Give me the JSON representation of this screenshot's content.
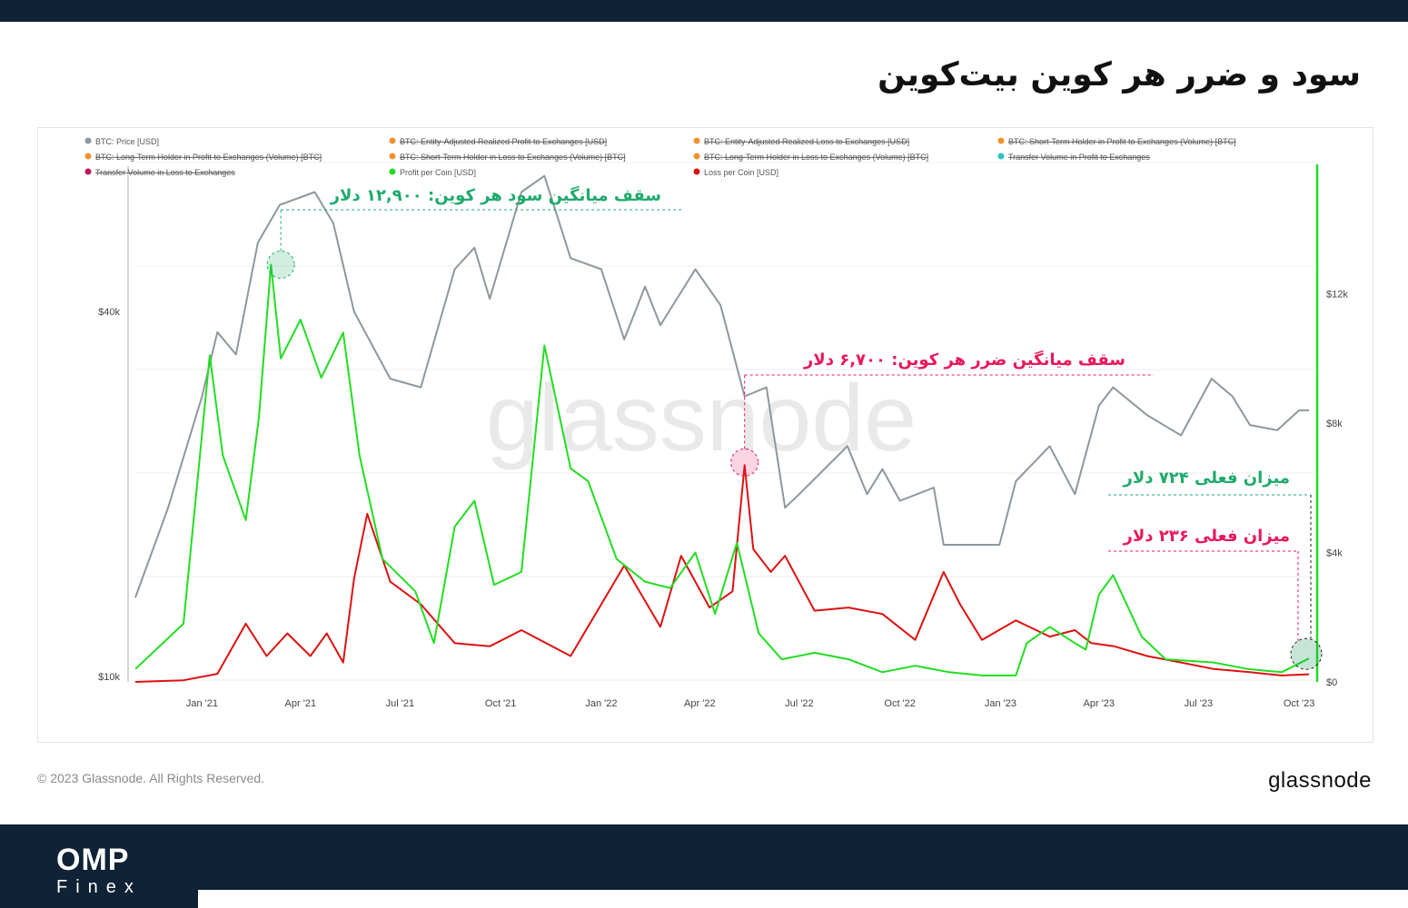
{
  "header": {
    "title": "سود و ضرر هر کوین بیت‌کوین"
  },
  "footer": {
    "copyright": "© 2023 Glassnode. All Rights Reserved.",
    "logo_text": "glassnode",
    "brand_main": "OMP",
    "brand_sub": "Finex"
  },
  "colors": {
    "price": "#8e979e",
    "profit": "#22dd22",
    "loss": "#dd1111",
    "annot_green": "#1faa6b",
    "annot_red": "#e8185a",
    "dark_bar": "#0f2236"
  },
  "chart_data": {
    "type": "line",
    "watermark": "glassnode",
    "legend": [
      {
        "label": "BTC: Price [USD]",
        "color": "#8e979e",
        "hidden": false
      },
      {
        "label": "BTC: Entity-Adjusted Realized Profit to Exchanges [USD]",
        "color": "#f5922b",
        "hidden": true
      },
      {
        "label": "BTC: Entity-Adjusted Realized Loss to Exchanges [USD]",
        "color": "#f5922b",
        "hidden": true
      },
      {
        "label": "BTC: Short-Term Holder in Profit to Exchanges (Volume) [BTC]",
        "color": "#f5922b",
        "hidden": true
      },
      {
        "label": "BTC: Long-Term Holder in Profit to Exchanges (Volume) [BTC]",
        "color": "#f5922b",
        "hidden": true
      },
      {
        "label": "BTC: Short-Term Holder in Loss to Exchanges (Volume) [BTC]",
        "color": "#f5922b",
        "hidden": true
      },
      {
        "label": "BTC: Long-Term Holder in Loss to Exchanges (Volume) [BTC]",
        "color": "#f5922b",
        "hidden": true
      },
      {
        "label": "Transfer Volume in Profit to Exchanges",
        "color": "#2ec4c4",
        "hidden": true
      },
      {
        "label": "Transfer Volume in Loss to Exchanges",
        "color": "#c0175a",
        "hidden": true
      },
      {
        "label": "Profit per Coin [USD]",
        "color": "#22dd22",
        "hidden": false
      },
      {
        "label": "Loss per Coin [USD]",
        "color": "#dd1111",
        "hidden": false
      }
    ],
    "x_ticks": [
      "Jan '21",
      "Apr '21",
      "Jul '21",
      "Oct '21",
      "Jan '22",
      "Apr '22",
      "Jul '22",
      "Oct '22",
      "Jan '23",
      "Apr '23",
      "Jul '23",
      "Oct '23"
    ],
    "x_range": [
      "2020-11-01",
      "2023-10-15"
    ],
    "y_left": {
      "scale": "log",
      "ticks": [
        "$10k",
        "$40k"
      ],
      "tick_values": [
        10000,
        40000
      ],
      "range": [
        9800,
        70000
      ]
    },
    "y_right": {
      "ticks": [
        "$0",
        "$4k",
        "$8k",
        "$12k"
      ],
      "tick_values": [
        0,
        4000,
        8000,
        12000
      ],
      "range": [
        0,
        16000
      ]
    },
    "series": [
      {
        "name": "BTC: Price [USD]",
        "axis": "left",
        "color": "#8e979e",
        "x": [
          "2020-11-01",
          "2020-12-01",
          "2021-01-01",
          "2021-01-15",
          "2021-02-01",
          "2021-02-21",
          "2021-03-13",
          "2021-04-14",
          "2021-05-01",
          "2021-05-20",
          "2021-06-22",
          "2021-07-20",
          "2021-08-20",
          "2021-09-07",
          "2021-09-21",
          "2021-10-20",
          "2021-11-10",
          "2021-12-04",
          "2022-01-01",
          "2022-01-22",
          "2022-02-10",
          "2022-02-24",
          "2022-03-28",
          "2022-04-20",
          "2022-05-12",
          "2022-06-01",
          "2022-06-18",
          "2022-07-01",
          "2022-08-14",
          "2022-09-01",
          "2022-09-15",
          "2022-10-01",
          "2022-11-01",
          "2022-11-10",
          "2022-12-31",
          "2023-01-15",
          "2023-02-15",
          "2023-03-10",
          "2023-04-01",
          "2023-04-14",
          "2023-05-15",
          "2023-06-15",
          "2023-07-13",
          "2023-08-01",
          "2023-08-17",
          "2023-09-11",
          "2023-10-01",
          "2023-10-10"
        ],
        "y": [
          13500,
          19000,
          29000,
          37000,
          34000,
          52000,
          60000,
          63000,
          56000,
          40000,
          31000,
          30000,
          47000,
          51000,
          42000,
          63000,
          67000,
          49000,
          47000,
          36000,
          44000,
          38000,
          47000,
          41000,
          29000,
          30000,
          19000,
          20000,
          24000,
          20000,
          22000,
          19500,
          20500,
          16500,
          16500,
          21000,
          24000,
          20000,
          28000,
          30000,
          27000,
          25000,
          31000,
          29000,
          26000,
          25500,
          27500,
          27500
        ]
      },
      {
        "name": "Profit per Coin [USD]",
        "axis": "right",
        "color": "#22dd22",
        "x": [
          "2020-11-01",
          "2020-12-15",
          "2021-01-08",
          "2021-01-20",
          "2021-02-10",
          "2021-02-22",
          "2021-03-05",
          "2021-03-14",
          "2021-04-01",
          "2021-04-20",
          "2021-05-10",
          "2021-05-25",
          "2021-06-15",
          "2021-07-15",
          "2021-08-01",
          "2021-08-20",
          "2021-09-07",
          "2021-09-25",
          "2021-10-20",
          "2021-11-10",
          "2021-12-04",
          "2021-12-20",
          "2022-01-15",
          "2022-02-10",
          "2022-03-05",
          "2022-03-28",
          "2022-04-15",
          "2022-05-05",
          "2022-05-25",
          "2022-06-15",
          "2022-07-15",
          "2022-08-15",
          "2022-09-15",
          "2022-10-15",
          "2022-11-15",
          "2022-12-15",
          "2023-01-15",
          "2023-01-25",
          "2023-02-15",
          "2023-03-10",
          "2023-03-20",
          "2023-04-01",
          "2023-04-14",
          "2023-05-10",
          "2023-06-01",
          "2023-07-15",
          "2023-08-15",
          "2023-09-15",
          "2023-10-10"
        ],
        "y": [
          400,
          1800,
          10100,
          7000,
          5000,
          8200,
          12900,
          10000,
          11200,
          9400,
          10800,
          7000,
          3800,
          2800,
          1200,
          4800,
          5600,
          3000,
          3400,
          10400,
          6600,
          6200,
          3800,
          3100,
          2900,
          4000,
          2100,
          4300,
          1500,
          700,
          900,
          700,
          300,
          500,
          300,
          200,
          200,
          1200,
          1700,
          1200,
          1000,
          2700,
          3300,
          1400,
          700,
          600,
          400,
          300,
          724
        ]
      },
      {
        "name": "Loss per Coin [USD]",
        "axis": "right",
        "color": "#dd1111",
        "x": [
          "2020-11-01",
          "2020-12-15",
          "2021-01-15",
          "2021-02-10",
          "2021-03-01",
          "2021-03-20",
          "2021-04-10",
          "2021-04-25",
          "2021-05-10",
          "2021-05-20",
          "2021-06-01",
          "2021-06-22",
          "2021-07-20",
          "2021-08-20",
          "2021-09-21",
          "2021-10-20",
          "2021-12-04",
          "2022-01-22",
          "2022-02-24",
          "2022-03-15",
          "2022-04-10",
          "2022-05-01",
          "2022-05-12",
          "2022-05-20",
          "2022-06-05",
          "2022-06-18",
          "2022-07-15",
          "2022-08-15",
          "2022-09-15",
          "2022-10-15",
          "2022-11-10",
          "2022-11-25",
          "2022-12-15",
          "2023-01-15",
          "2023-02-15",
          "2023-03-10",
          "2023-03-25",
          "2023-04-15",
          "2023-05-15",
          "2023-06-15",
          "2023-07-15",
          "2023-08-17",
          "2023-09-15",
          "2023-10-10"
        ],
        "y": [
          0,
          50,
          250,
          1800,
          800,
          1500,
          800,
          1500,
          600,
          3200,
          5200,
          3100,
          2400,
          1200,
          1100,
          1600,
          800,
          3600,
          1700,
          3900,
          2300,
          2800,
          6700,
          4100,
          3400,
          3900,
          2200,
          2300,
          2100,
          1300,
          3400,
          2400,
          1300,
          1900,
          1400,
          1600,
          1200,
          1100,
          800,
          600,
          400,
          300,
          200,
          236
        ]
      }
    ],
    "annotations": [
      {
        "text": "سقف میانگین سود هر کوین: ۱۲,۹۰۰ دلار",
        "color": "#1faa6b",
        "date": "2021-03-14",
        "value": 12900
      },
      {
        "text": "سقف میانگین ضرر هر کوین: ۶,۷۰۰ دلار",
        "color": "#e8185a",
        "date": "2022-05-12",
        "value": 6700
      },
      {
        "text": "میزان فعلی ۷۲۴ دلار",
        "color": "#1faa6b",
        "value": 724
      },
      {
        "text": "میزان فعلی ۲۳۶ دلار",
        "color": "#e8185a",
        "value": 236
      }
    ]
  }
}
